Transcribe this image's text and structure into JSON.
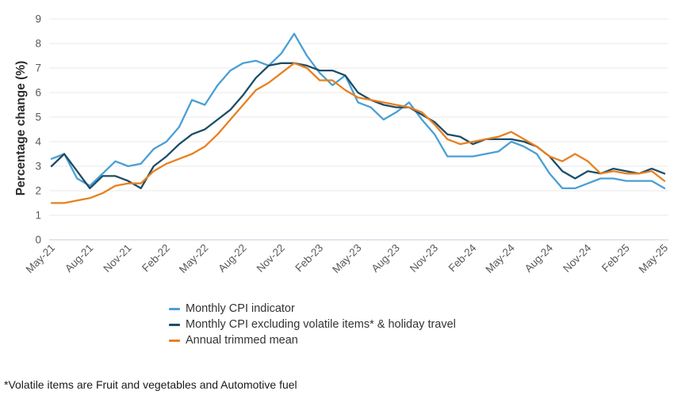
{
  "chart_data": {
    "type": "line",
    "title": "",
    "xlabel": "",
    "ylabel": "Percentage change (%)",
    "ylim": [
      0,
      9
    ],
    "y_tick_step": 1,
    "x_tick_every": 3,
    "grid": "horizontal",
    "legend_position": "bottom",
    "colors": {
      "axis_zero_line": "#bccddc",
      "grid_line": "#e9e9e9",
      "tick_text": "#595959",
      "axis_title_text": "#2b2b2b"
    },
    "categories": [
      "May-21",
      "Jun-21",
      "Jul-21",
      "Aug-21",
      "Sep-21",
      "Oct-21",
      "Nov-21",
      "Dec-21",
      "Jan-22",
      "Feb-22",
      "Mar-22",
      "Apr-22",
      "May-22",
      "Jun-22",
      "Jul-22",
      "Aug-22",
      "Sep-22",
      "Oct-22",
      "Nov-22",
      "Dec-22",
      "Jan-23",
      "Feb-23",
      "Mar-23",
      "Apr-23",
      "May-23",
      "Jun-23",
      "Jul-23",
      "Aug-23",
      "Sep-23",
      "Oct-23",
      "Nov-23",
      "Dec-23",
      "Jan-24",
      "Feb-24",
      "Mar-24",
      "Apr-24",
      "May-24",
      "Jun-24",
      "Jul-24",
      "Aug-24",
      "Sep-24",
      "Oct-24",
      "Nov-24",
      "Dec-24",
      "Jan-25",
      "Feb-25",
      "Mar-25",
      "Apr-25",
      "May-25"
    ],
    "series": [
      {
        "name": "Monthly CPI indicator",
        "color": "#4A9FD4",
        "values": [
          3.3,
          3.5,
          2.5,
          2.2,
          2.7,
          3.2,
          3.0,
          3.1,
          3.7,
          4.0,
          4.6,
          5.7,
          5.5,
          6.3,
          6.9,
          7.2,
          7.3,
          7.1,
          7.6,
          8.4,
          7.5,
          6.8,
          6.3,
          6.7,
          5.6,
          5.4,
          4.9,
          5.2,
          5.6,
          4.9,
          4.3,
          3.4,
          3.4,
          3.4,
          3.5,
          3.6,
          4.0,
          3.8,
          3.5,
          2.7,
          2.1,
          2.1,
          2.3,
          2.5,
          2.5,
          2.4,
          2.4,
          2.4,
          2.1
        ]
      },
      {
        "name": "Monthly CPI excluding volatile items* & holiday travel",
        "color": "#1C4D66",
        "values": [
          3.0,
          3.5,
          2.8,
          2.1,
          2.6,
          2.6,
          2.4,
          2.1,
          3.0,
          3.4,
          3.9,
          4.3,
          4.5,
          4.9,
          5.3,
          5.9,
          6.6,
          7.1,
          7.2,
          7.2,
          7.1,
          6.9,
          6.9,
          6.7,
          6.0,
          5.7,
          5.5,
          5.4,
          5.4,
          5.1,
          4.8,
          4.3,
          4.2,
          3.9,
          4.1,
          4.1,
          4.1,
          4.0,
          3.8,
          3.4,
          2.8,
          2.5,
          2.8,
          2.7,
          2.9,
          2.8,
          2.7,
          2.9,
          2.7
        ]
      },
      {
        "name": "Annual trimmed mean",
        "color": "#E8801F",
        "values": [
          1.5,
          1.5,
          1.6,
          1.7,
          1.9,
          2.2,
          2.3,
          2.3,
          2.8,
          3.1,
          3.3,
          3.5,
          3.8,
          4.3,
          4.9,
          5.5,
          6.1,
          6.4,
          6.8,
          7.2,
          7.0,
          6.5,
          6.5,
          6.1,
          5.8,
          5.7,
          5.6,
          5.5,
          5.4,
          5.2,
          4.7,
          4.1,
          3.9,
          4.0,
          4.1,
          4.2,
          4.4,
          4.1,
          3.8,
          3.4,
          3.2,
          3.5,
          3.2,
          2.7,
          2.8,
          2.7,
          2.7,
          2.8,
          2.4
        ]
      }
    ],
    "footnote": "*Volatile items are Fruit and vegetables and Automotive fuel"
  }
}
